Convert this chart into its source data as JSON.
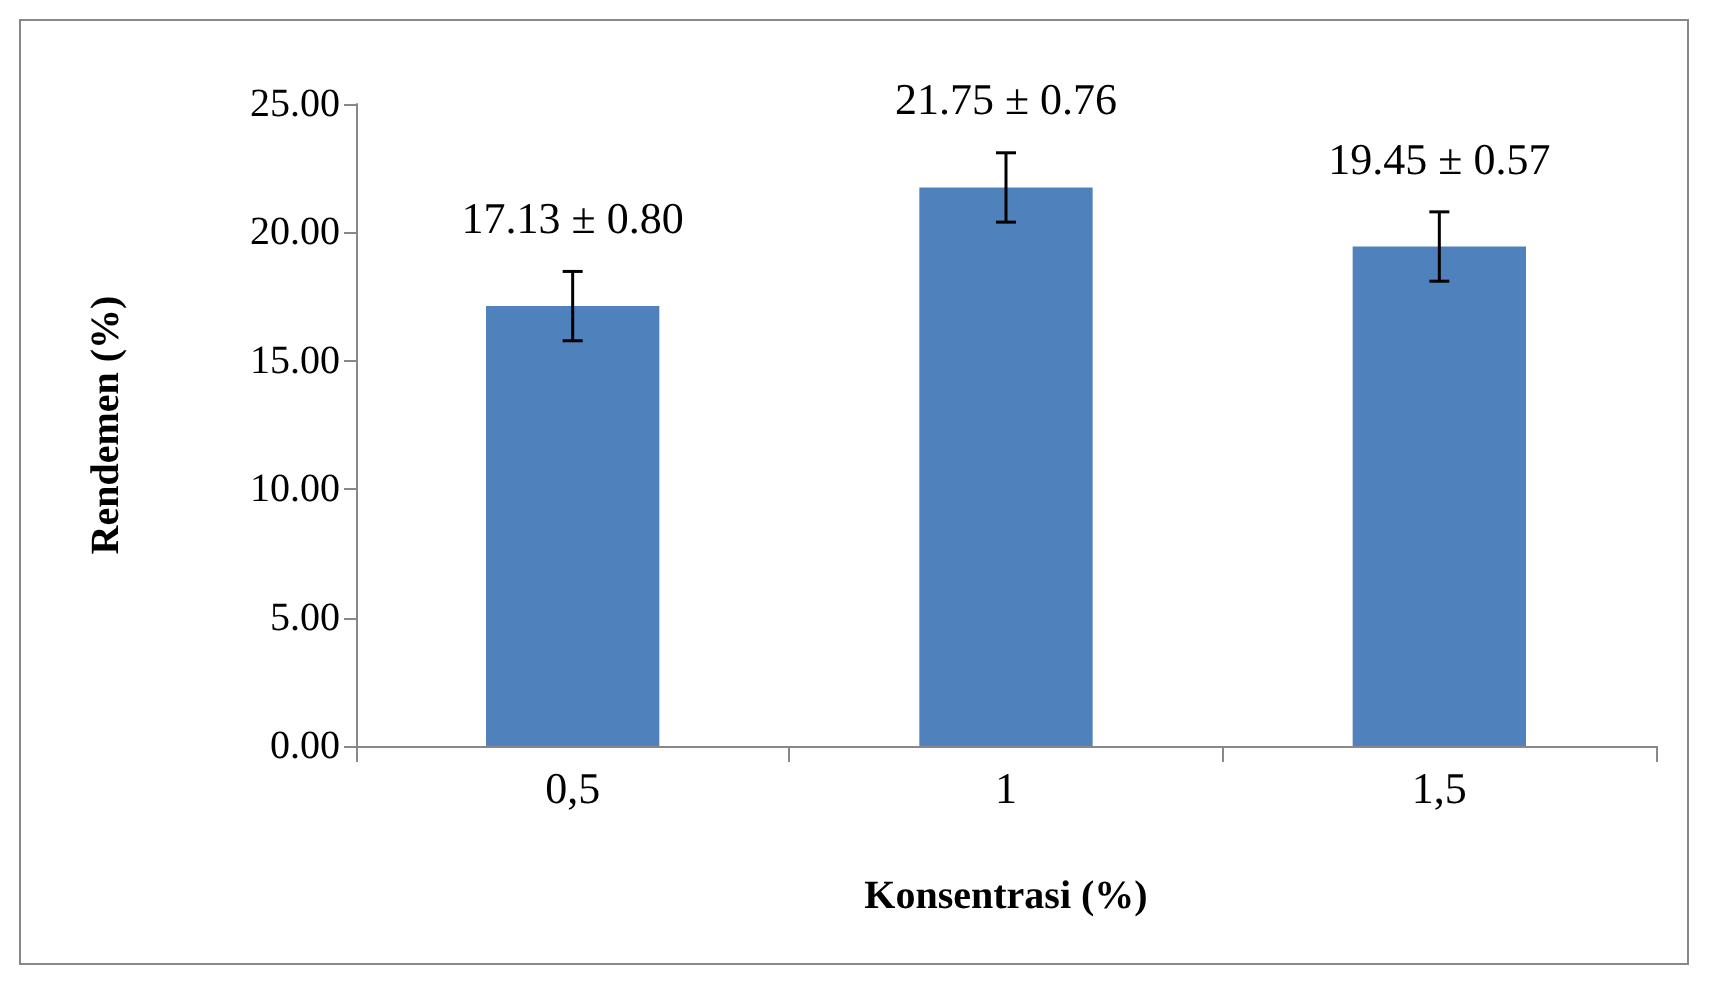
{
  "chart_data": {
    "type": "bar",
    "xlabel": "Konsentrasi (%)",
    "ylabel": "Rendemen (%)",
    "categories": [
      "0,5",
      "1",
      "1,5"
    ],
    "values": [
      17.13,
      21.75,
      19.45
    ],
    "errors": [
      1.35,
      1.35,
      1.35
    ],
    "value_labels": [
      "17.13 ± 0.80",
      "21.75 ± 0.76",
      "19.45 ± 0.57"
    ],
    "color": "#4f81bd",
    "ylim": [
      0,
      25
    ],
    "yticks": [
      {
        "value": 0,
        "label": "0.00"
      },
      {
        "value": 5,
        "label": "5.00"
      },
      {
        "value": 10,
        "label": "10.00"
      },
      {
        "value": 15,
        "label": "15.00"
      },
      {
        "value": 20,
        "label": "20.00"
      },
      {
        "value": 25,
        "label": "25.00"
      }
    ],
    "grid": false
  }
}
